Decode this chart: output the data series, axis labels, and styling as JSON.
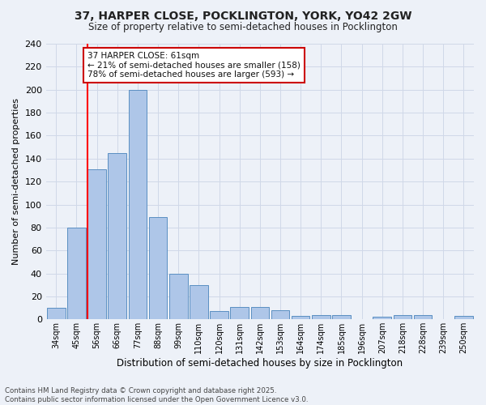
{
  "title1": "37, HARPER CLOSE, POCKLINGTON, YORK, YO42 2GW",
  "title2": "Size of property relative to semi-detached houses in Pocklington",
  "xlabel": "Distribution of semi-detached houses by size in Pocklington",
  "ylabel": "Number of semi-detached properties",
  "categories": [
    "34sqm",
    "45sqm",
    "56sqm",
    "66sqm",
    "77sqm",
    "88sqm",
    "99sqm",
    "110sqm",
    "120sqm",
    "131sqm",
    "142sqm",
    "153sqm",
    "164sqm",
    "174sqm",
    "185sqm",
    "196sqm",
    "207sqm",
    "218sqm",
    "228sqm",
    "239sqm",
    "250sqm"
  ],
  "values": [
    10,
    80,
    131,
    145,
    200,
    89,
    40,
    30,
    7,
    11,
    11,
    8,
    3,
    4,
    4,
    0,
    2,
    4,
    4,
    0,
    3
  ],
  "bar_color": "#aec6e8",
  "bar_edge_color": "#5a8fc2",
  "grid_color": "#d0d8e8",
  "annotation_line1": "37 HARPER CLOSE: 61sqm",
  "annotation_line2": "← 21% of semi-detached houses are smaller (158)",
  "annotation_line3": "78% of semi-detached houses are larger (593) →",
  "annotation_box_color": "#ffffff",
  "annotation_box_edge_color": "#cc0000",
  "footer1": "Contains HM Land Registry data © Crown copyright and database right 2025.",
  "footer2": "Contains public sector information licensed under the Open Government Licence v3.0.",
  "ylim": [
    0,
    240
  ],
  "yticks": [
    0,
    20,
    40,
    60,
    80,
    100,
    120,
    140,
    160,
    180,
    200,
    220,
    240
  ],
  "background_color": "#edf1f8"
}
